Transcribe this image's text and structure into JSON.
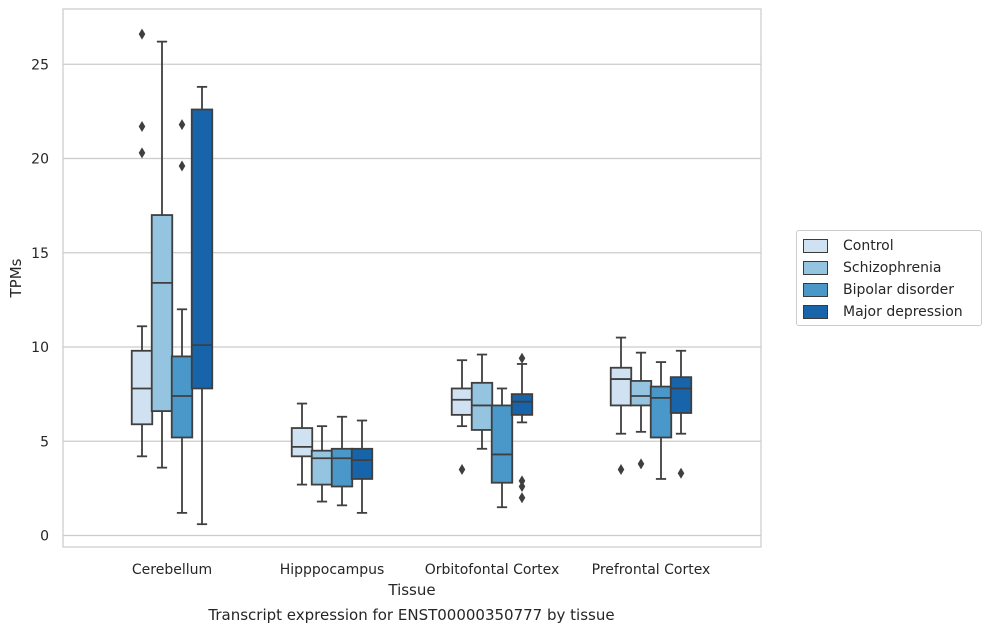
{
  "chart_data": {
    "type": "box",
    "xlabel": "Tissue",
    "ylabel": "TPMs",
    "ylim": [
      -0.5,
      28
    ],
    "yticks": [
      0,
      5,
      10,
      15,
      20,
      25
    ],
    "grid": "horizontal",
    "legend_position": "right",
    "categories": [
      "Cerebellum",
      "Hipppocampus",
      "Orbitofontal Cortex",
      "Prefrontal Cortex"
    ],
    "series": [
      {
        "name": "Control",
        "color": "#d0e1f2",
        "boxes": [
          {
            "whislo": 4.2,
            "q1": 5.9,
            "med": 7.8,
            "q3": 9.8,
            "whishi": 11.1,
            "fliers": [
              20.3,
              21.7,
              26.6
            ]
          },
          {
            "whislo": 2.7,
            "q1": 4.2,
            "med": 4.7,
            "q3": 5.7,
            "whishi": 7.0,
            "fliers": []
          },
          {
            "whislo": 5.8,
            "q1": 6.4,
            "med": 7.2,
            "q3": 7.8,
            "whishi": 9.3,
            "fliers": [
              3.5
            ]
          },
          {
            "whislo": 5.4,
            "q1": 6.9,
            "med": 8.3,
            "q3": 8.9,
            "whishi": 10.5,
            "fliers": [
              3.5
            ]
          }
        ]
      },
      {
        "name": "Schizophrenia",
        "color": "#94c4df",
        "boxes": [
          {
            "whislo": 3.6,
            "q1": 6.6,
            "med": 13.4,
            "q3": 17.0,
            "whishi": 26.2,
            "fliers": []
          },
          {
            "whislo": 1.8,
            "q1": 2.7,
            "med": 4.1,
            "q3": 4.5,
            "whishi": 5.8,
            "fliers": []
          },
          {
            "whislo": 4.6,
            "q1": 5.6,
            "med": 6.9,
            "q3": 8.1,
            "whishi": 9.6,
            "fliers": []
          },
          {
            "whislo": 5.5,
            "q1": 6.9,
            "med": 7.4,
            "q3": 8.2,
            "whishi": 9.7,
            "fliers": [
              3.8
            ]
          }
        ]
      },
      {
        "name": "Bipolar disorder",
        "color": "#4a98c9",
        "boxes": [
          {
            "whislo": 1.2,
            "q1": 5.2,
            "med": 7.4,
            "q3": 9.5,
            "whishi": 12.0,
            "fliers": [
              19.6,
              21.8
            ]
          },
          {
            "whislo": 1.6,
            "q1": 2.6,
            "med": 4.1,
            "q3": 4.6,
            "whishi": 6.3,
            "fliers": []
          },
          {
            "whislo": 1.5,
            "q1": 2.8,
            "med": 4.3,
            "q3": 6.9,
            "whishi": 7.8,
            "fliers": []
          },
          {
            "whislo": 3.0,
            "q1": 5.2,
            "med": 7.3,
            "q3": 7.9,
            "whishi": 9.2,
            "fliers": []
          }
        ]
      },
      {
        "name": "Major depression",
        "color": "#1764ab",
        "boxes": [
          {
            "whislo": 0.6,
            "q1": 7.8,
            "med": 10.1,
            "q3": 22.6,
            "whishi": 23.8,
            "fliers": []
          },
          {
            "whislo": 1.2,
            "q1": 3.0,
            "med": 4.0,
            "q3": 4.6,
            "whishi": 6.1,
            "fliers": []
          },
          {
            "whislo": 6.0,
            "q1": 6.4,
            "med": 7.1,
            "q3": 7.5,
            "whishi": 9.1,
            "fliers": [
              2.0,
              2.6,
              2.9,
              9.4
            ]
          },
          {
            "whislo": 5.4,
            "q1": 6.5,
            "med": 7.8,
            "q3": 8.4,
            "whishi": 9.8,
            "fliers": [
              3.3
            ]
          }
        ]
      }
    ]
  },
  "caption": "Transcript expression for ENST00000350777 by tissue"
}
